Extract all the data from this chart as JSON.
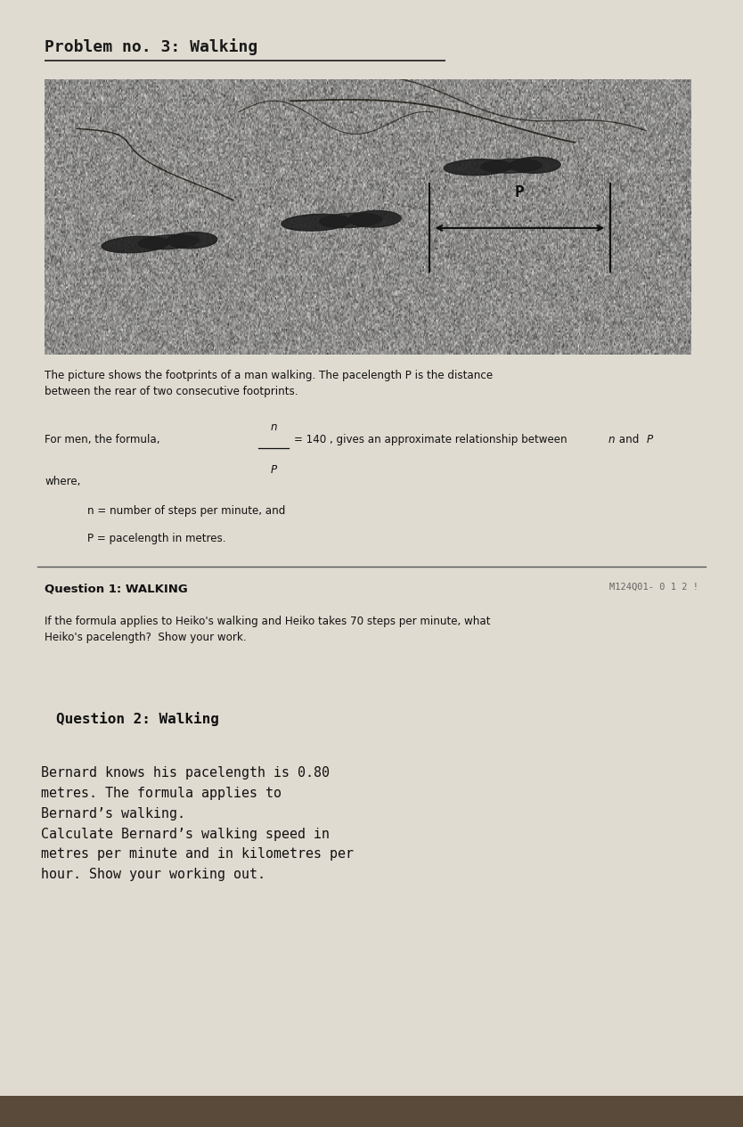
{
  "page_bg": "#e0dbd0",
  "title": "Problem no. 3: Walking",
  "title_fontsize": 13,
  "intro_text": "The picture shows the footprints of a man walking. The pacelength P is the distance\nbetween the rear of two consecutive footprints.",
  "where_text": "where,",
  "def1": "    n = number of steps per minute, and",
  "def2": "    P = pacelength in metres.",
  "q1_label": "Question 1: WALKING",
  "q1_code": "M124Q01- 0 1 2 !",
  "q1_text": "If the formula applies to Heiko's walking and Heiko takes 70 steps per minute, what\nHeiko's pacelength?  Show your work.",
  "q2_label": "Question 2: Walking",
  "q2_text": "Bernard knows his pacelength is 0.80\nmetres. The formula applies to\nBernard’s walking.\nCalculate Bernard’s walking speed in\nmetres per minute and in kilometres per\nhour. Show your working out.",
  "footer_color": "#5a4a3a"
}
